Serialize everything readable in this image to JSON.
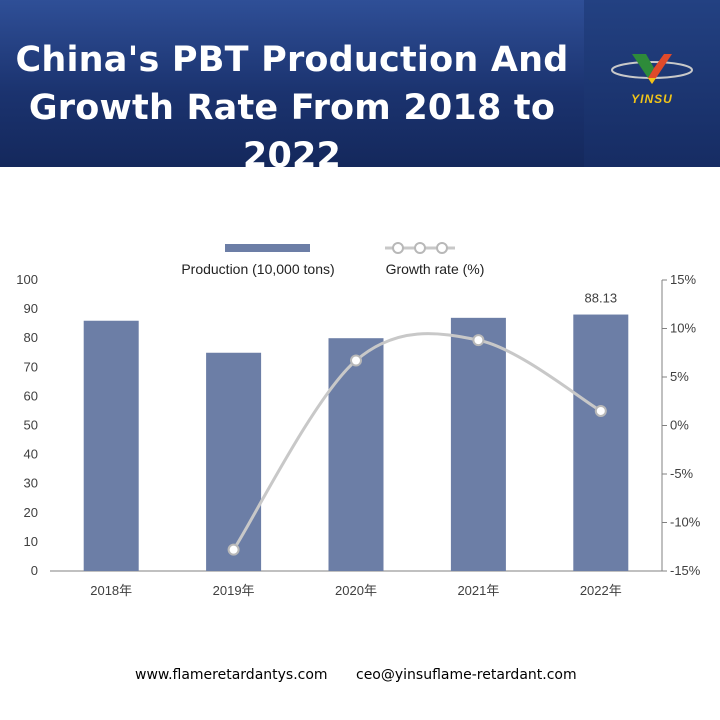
{
  "header": {
    "title_line1": "China's PBT Production And",
    "title_line2": "Growth Rate From 2018 to 2022",
    "logo_text": "YINSU"
  },
  "footer": {
    "website": "www.flameretardantys.com",
    "email": "ceo@yinsuflame-retardant.com"
  },
  "colors": {
    "banner": "#1f3b7e",
    "bar": "#6c7ea6",
    "line": "#c8c8c8",
    "axis_text": "#404040"
  },
  "chart_data": {
    "type": "bar",
    "categories": [
      "2018年",
      "2019年",
      "2020年",
      "2021年",
      "2022年"
    ],
    "series": [
      {
        "name": "Production (10,000 tons)",
        "type": "bar",
        "axis": "left",
        "values": [
          86,
          75,
          80,
          87,
          88.13
        ]
      },
      {
        "name": "Growth rate (%)",
        "type": "line",
        "axis": "right",
        "values": [
          null,
          -12.8,
          6.7,
          8.8,
          1.5
        ]
      }
    ],
    "data_labels": [
      {
        "category": "2022年",
        "series": "Production (10,000 tons)",
        "text": "88.13"
      }
    ],
    "y_left": {
      "min": 0,
      "max": 100,
      "ticks": [
        "0",
        "10",
        "20",
        "30",
        "40",
        "50",
        "60",
        "70",
        "80",
        "90",
        "100"
      ]
    },
    "y_right": {
      "min": -15,
      "max": 15,
      "ticks": [
        "15%",
        "10%",
        "5%",
        "0%",
        "-5%",
        "-10%",
        "-15%"
      ]
    },
    "legend_position": "top-center",
    "grid": false
  }
}
